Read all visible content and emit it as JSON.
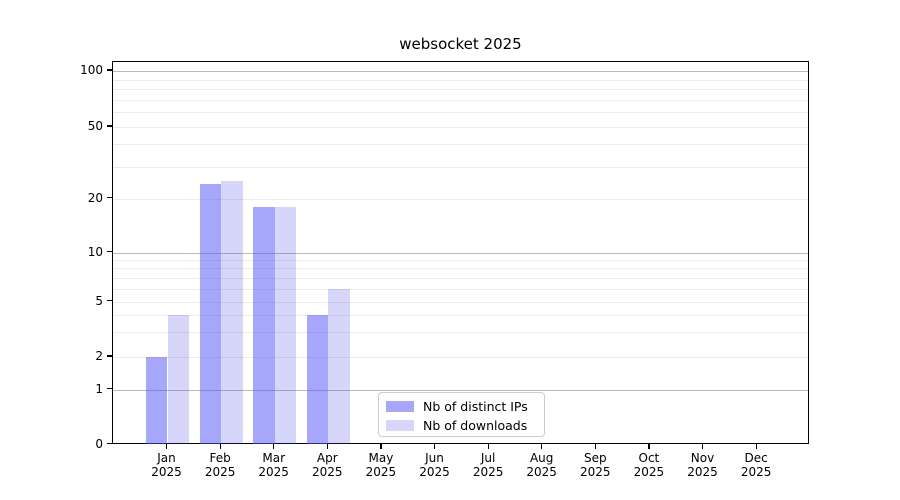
{
  "title": "websocket 2025",
  "chart_data": {
    "type": "bar",
    "title": "websocket 2025",
    "categories": [
      "Jan 2025",
      "Feb 2025",
      "Mar 2025",
      "Apr 2025",
      "May 2025",
      "Jun 2025",
      "Jul 2025",
      "Aug 2025",
      "Sep 2025",
      "Oct 2025",
      "Nov 2025",
      "Dec 2025"
    ],
    "series": [
      {
        "name": "Nb of distinct IPs",
        "color": "rgba(85,85,245,0.52)",
        "values": [
          2,
          24,
          18,
          4,
          0,
          0,
          0,
          0,
          0,
          0,
          0,
          0
        ]
      },
      {
        "name": "Nb of downloads",
        "color": "rgba(70,70,230,0.22)",
        "values": [
          4,
          25,
          18,
          6,
          0,
          0,
          0,
          0,
          0,
          0,
          0,
          0
        ]
      }
    ],
    "y_axis": {
      "scale": "symlog",
      "tick_labels": [
        "0",
        "1",
        "2",
        "5",
        "10",
        "20",
        "50",
        "100"
      ],
      "tick_values": [
        0,
        1,
        2,
        5,
        10,
        20,
        50,
        100
      ],
      "ylim": [
        0,
        100
      ],
      "grid": true
    },
    "legend": {
      "position": "bottom-center",
      "entries": [
        "Nb of distinct IPs",
        "Nb of downloads"
      ]
    }
  }
}
